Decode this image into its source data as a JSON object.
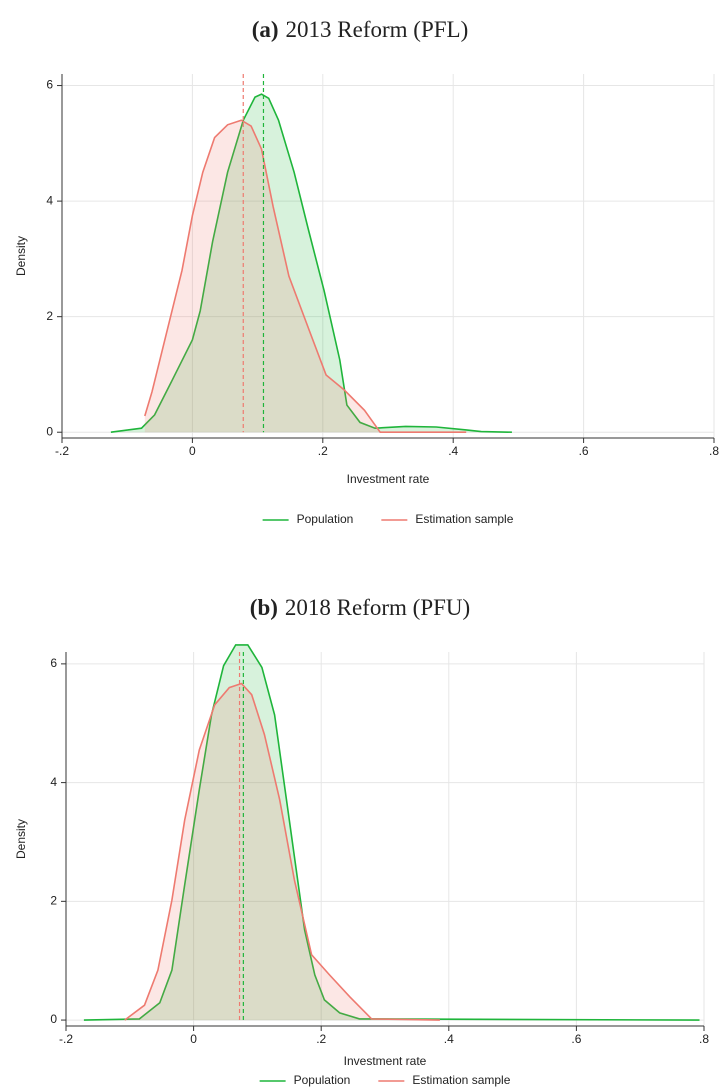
{
  "chart_data": [
    {
      "type": "area",
      "panel": "(a)",
      "title": "2013 Reform (PFL)",
      "x_label": "Investment rate",
      "y_label": "Density",
      "xlim": [
        -0.2,
        0.8
      ],
      "ylim": [
        -0.1,
        6.2
      ],
      "xticks": [
        {
          "value": -0.2,
          "label": "-.2"
        },
        0,
        {
          "value": 0.2,
          "label": ".2"
        },
        {
          "value": 0.4,
          "label": ".4"
        },
        {
          "value": 0.6,
          "label": ".6"
        },
        {
          "value": 0.8,
          "label": ".8"
        }
      ],
      "yticks": [
        0,
        2,
        4,
        6
      ],
      "grid": true,
      "legend": "bottom",
      "series": [
        {
          "name": "Population",
          "color": "#1fb53b",
          "vline": 0.109,
          "x": [
            -0.125,
            -0.078,
            -0.058,
            -0.031,
            0,
            0.012,
            0.031,
            0.054,
            0.078,
            0.096,
            0.106,
            0.117,
            0.132,
            0.156,
            0.178,
            0.202,
            0.226,
            0.237,
            0.257,
            0.28,
            0.327,
            0.374,
            0.42,
            0.443,
            0.49
          ],
          "values": [
            0,
            0.07,
            0.3,
            0.9,
            1.6,
            2.1,
            3.3,
            4.5,
            5.4,
            5.8,
            5.85,
            5.78,
            5.4,
            4.5,
            3.5,
            2.45,
            1.25,
            0.47,
            0.17,
            0.07,
            0.1,
            0.09,
            0.04,
            0.01,
            0
          ]
        },
        {
          "name": "Estimation sample",
          "color": "#ee7a70",
          "vline": 0.078,
          "x": [
            -0.073,
            -0.062,
            -0.039,
            -0.016,
            0,
            0.016,
            0.034,
            0.054,
            0.075,
            0.09,
            0.106,
            0.124,
            0.148,
            0.179,
            0.205,
            0.233,
            0.264,
            0.288,
            0.42
          ],
          "values": [
            0.28,
            0.7,
            1.75,
            2.8,
            3.75,
            4.5,
            5.1,
            5.32,
            5.4,
            5.3,
            4.9,
            3.9,
            2.7,
            1.77,
            0.99,
            0.73,
            0.38,
            0,
            0
          ]
        }
      ]
    },
    {
      "type": "area",
      "panel": "(b)",
      "title": "2018 Reform (PFU)",
      "x_label": "Investment rate",
      "y_label": "Density",
      "xlim": [
        -0.2,
        0.8
      ],
      "ylim": [
        -0.1,
        6.2
      ],
      "xticks": [
        {
          "value": -0.2,
          "label": "-.2"
        },
        0,
        {
          "value": 0.2,
          "label": ".2"
        },
        {
          "value": 0.4,
          "label": ".4"
        },
        {
          "value": 0.6,
          "label": ".6"
        },
        {
          "value": 0.8,
          "label": ".8"
        }
      ],
      "yticks": [
        0,
        2,
        4,
        6
      ],
      "grid": true,
      "legend": "bottom",
      "series": [
        {
          "name": "Population",
          "color": "#1fb53b",
          "vline": 0.078,
          "x": [
            -0.172,
            -0.085,
            -0.053,
            -0.034,
            -0.014,
            0.009,
            0.028,
            0.047,
            0.066,
            0.085,
            0.107,
            0.127,
            0.15,
            0.174,
            0.19,
            0.205,
            0.229,
            0.26,
            0.793
          ],
          "values": [
            0,
            0.02,
            0.29,
            0.84,
            2.28,
            3.88,
            5.14,
            5.97,
            6.32,
            6.32,
            5.94,
            5.14,
            3.37,
            1.52,
            0.76,
            0.34,
            0.12,
            0.02,
            0
          ]
        },
        {
          "name": "Estimation sample",
          "color": "#ee7a70",
          "vline": 0.072,
          "x": [
            -0.108,
            -0.077,
            -0.056,
            -0.034,
            -0.014,
            0.009,
            0.033,
            0.056,
            0.075,
            0.091,
            0.111,
            0.135,
            0.158,
            0.185,
            0.213,
            0.245,
            0.279,
            0.386
          ],
          "values": [
            0,
            0.25,
            0.84,
            2.02,
            3.37,
            4.55,
            5.31,
            5.6,
            5.67,
            5.48,
            4.81,
            3.71,
            2.36,
            1.1,
            0.76,
            0.39,
            0.02,
            0
          ]
        }
      ]
    }
  ]
}
